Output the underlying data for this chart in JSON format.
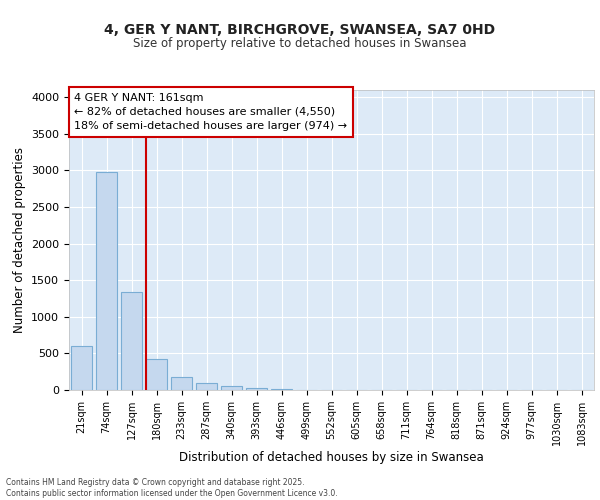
{
  "title": "4, GER Y NANT, BIRCHGROVE, SWANSEA, SA7 0HD",
  "subtitle": "Size of property relative to detached houses in Swansea",
  "xlabel": "Distribution of detached houses by size in Swansea",
  "ylabel": "Number of detached properties",
  "categories": [
    "21sqm",
    "74sqm",
    "127sqm",
    "180sqm",
    "233sqm",
    "287sqm",
    "340sqm",
    "393sqm",
    "446sqm",
    "499sqm",
    "552sqm",
    "605sqm",
    "658sqm",
    "711sqm",
    "764sqm",
    "818sqm",
    "871sqm",
    "924sqm",
    "977sqm",
    "1030sqm",
    "1083sqm"
  ],
  "values": [
    600,
    2980,
    1340,
    420,
    175,
    90,
    50,
    30,
    10,
    0,
    0,
    0,
    0,
    0,
    0,
    0,
    0,
    0,
    0,
    0,
    0
  ],
  "bar_color": "#c5d8ee",
  "bar_edge_color": "#7aadd4",
  "annotation_title": "4 GER Y NANT: 161sqm",
  "annotation_line1": "← 82% of detached houses are smaller (4,550)",
  "annotation_line2": "18% of semi-detached houses are larger (974) →",
  "annotation_box_facecolor": "#ffffff",
  "annotation_box_edgecolor": "#cc0000",
  "property_line_color": "#cc0000",
  "property_line_x": 2.57,
  "ylim": [
    0,
    4100
  ],
  "yticks": [
    0,
    500,
    1000,
    1500,
    2000,
    2500,
    3000,
    3500,
    4000
  ],
  "fig_background": "#ffffff",
  "plot_background": "#ddeaf7",
  "grid_color": "#ffffff",
  "footer_line1": "Contains HM Land Registry data © Crown copyright and database right 2025.",
  "footer_line2": "Contains public sector information licensed under the Open Government Licence v3.0."
}
